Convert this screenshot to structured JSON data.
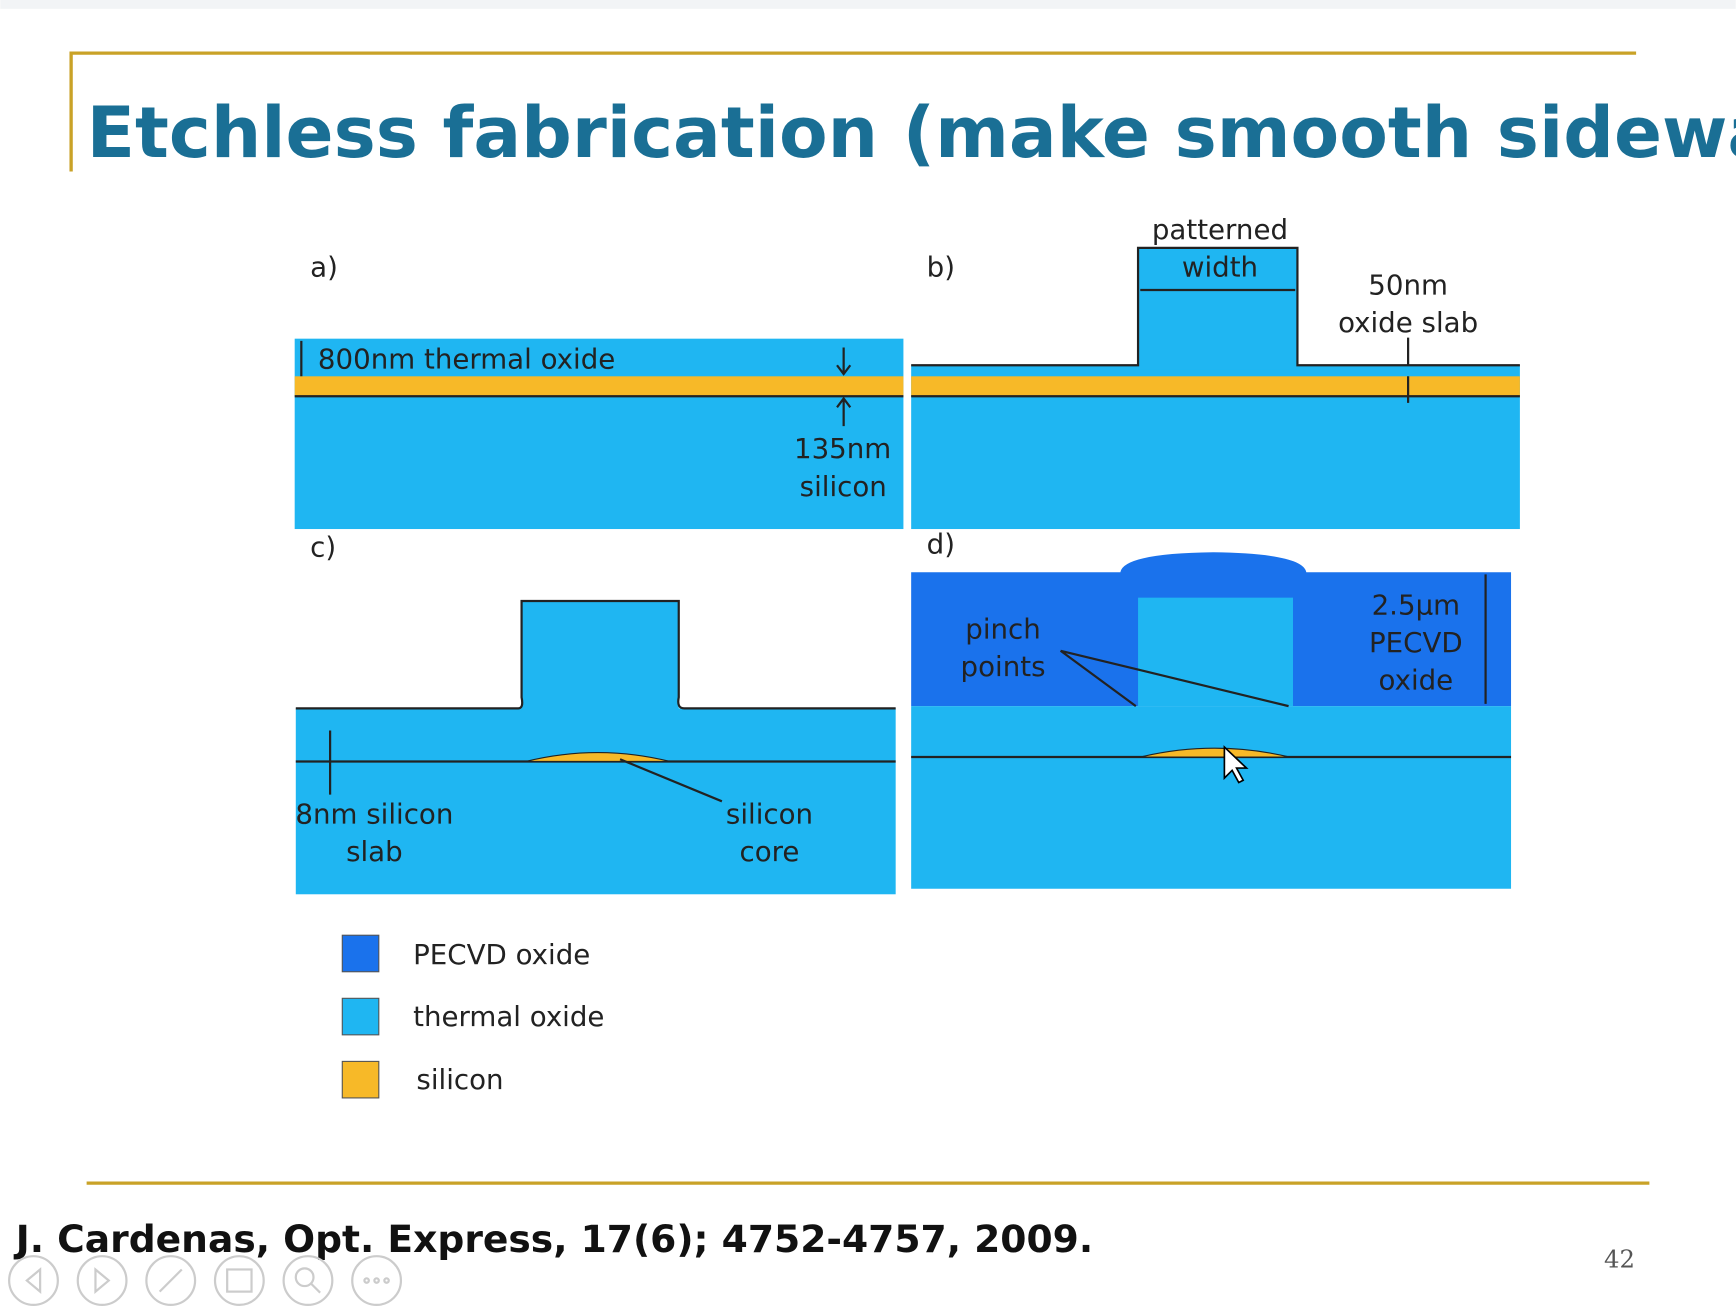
{
  "title": "Etchless fabrication (make smooth sidewalls)",
  "panels": [
    {
      "label": "a)",
      "annotations": [
        "800nm thermal oxide",
        "135nm",
        "silicon"
      ]
    },
    {
      "label": "b)",
      "annotations": [
        "patterned",
        "width",
        "50nm",
        "oxide slab"
      ]
    },
    {
      "label": "c)",
      "annotations": [
        "8nm silicon",
        "slab",
        "silicon",
        "core"
      ]
    },
    {
      "label": "d)",
      "annotations": [
        "pinch",
        "points",
        "2.5µm",
        "PECVD",
        "oxide"
      ]
    }
  ],
  "legend": [
    "PECVD oxide",
    "thermal oxide",
    "silicon"
  ],
  "citation": "J. Cardenas, Opt. Express, 17(6); 4752-4757, 2009.",
  "page_number": "42"
}
